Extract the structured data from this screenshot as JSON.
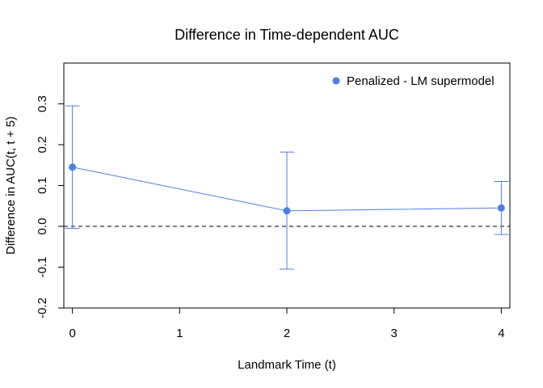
{
  "chart_data": {
    "type": "line",
    "title": "Difference in Time-dependent AUC",
    "xlabel": "Landmark Time (t)",
    "ylabel": "Difference in AUC(t, t + 5)",
    "xlim": [
      -0.08,
      4.08
    ],
    "ylim": [
      -0.2,
      0.4
    ],
    "xticks": [
      0,
      1,
      2,
      3,
      4
    ],
    "xtick_labels": [
      "0",
      "1",
      "2",
      "3",
      "4"
    ],
    "yticks": [
      -0.2,
      -0.1,
      0.0,
      0.1,
      0.2,
      0.3
    ],
    "ytick_labels": [
      "-0.2",
      "-0.1",
      "0.0",
      "0.1",
      "0.2",
      "0.3"
    ],
    "reference_line": {
      "y": 0,
      "style": "dashed"
    },
    "legend": {
      "position": "top-right"
    },
    "series": [
      {
        "name": "Penalized - LM supermodel",
        "color": "#4F7FE0",
        "x": [
          0,
          2,
          4
        ],
        "y": [
          0.145,
          0.038,
          0.045
        ],
        "error_lower": [
          -0.005,
          -0.105,
          -0.02
        ],
        "error_upper": [
          0.295,
          0.182,
          0.11
        ]
      }
    ]
  }
}
